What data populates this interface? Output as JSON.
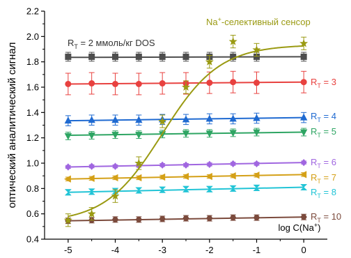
{
  "chart_data": {
    "type": "line",
    "xlabel": "log C(Na⁺)",
    "ylabel": "оптический аналитический сигнал",
    "xlim": [
      -5.5,
      0.5
    ],
    "ylim": [
      0.4,
      2.2
    ],
    "x_ticks": [
      -5,
      -4,
      -3,
      -2,
      -1,
      0
    ],
    "y_ticks": [
      0.4,
      0.6,
      0.8,
      1.0,
      1.2,
      1.4,
      1.6,
      1.8,
      2.0,
      2.2
    ],
    "y_tick_labels": [
      "0.4",
      "0.6",
      "0.8",
      "1.0",
      "1.2",
      "1.4",
      "1.6",
      "1.8",
      "2.0",
      "2.2"
    ],
    "x": [
      -5,
      -4.5,
      -4,
      -3.5,
      -3,
      -2.5,
      -2,
      -1.5,
      -1,
      0
    ],
    "series": [
      {
        "label": "R",
        "sub": "T",
        "suffix": " = 2 ммоль/кг DOS",
        "color": "#4d4d4d",
        "marker": "square",
        "err": 0.035,
        "y": [
          1.84,
          1.84,
          1.84,
          1.84,
          1.84,
          1.84,
          1.84,
          1.84,
          1.84,
          1.84
        ],
        "fit": [
          1.835,
          1.84
        ]
      },
      {
        "label": "R",
        "sub": "T",
        "suffix": " = 3",
        "color": "#e8413f",
        "marker": "circle",
        "err": 0.085,
        "y": [
          1.625,
          1.63,
          1.625,
          1.625,
          1.63,
          1.63,
          1.635,
          1.64,
          1.635,
          1.64
        ],
        "fit": [
          1.625,
          1.64
        ]
      },
      {
        "label": "R",
        "sub": "T",
        "suffix": " = 4",
        "color": "#1f6ad1",
        "marker": "triangle-up",
        "err": 0.04,
        "y": [
          1.335,
          1.34,
          1.34,
          1.34,
          1.345,
          1.345,
          1.35,
          1.35,
          1.355,
          1.36
        ],
        "fit": [
          1.335,
          1.36
        ]
      },
      {
        "label": "R",
        "sub": "T",
        "suffix": " = 5",
        "color": "#2ea563",
        "marker": "triangle-down",
        "err": 0.03,
        "y": [
          1.215,
          1.22,
          1.225,
          1.225,
          1.23,
          1.235,
          1.235,
          1.24,
          1.245,
          1.245
        ],
        "fit": [
          1.22,
          1.245
        ]
      },
      {
        "label": "R",
        "sub": "T",
        "suffix": " = 6",
        "color": "#a066e0",
        "marker": "diamond",
        "err": 0.012,
        "y": [
          0.97,
          0.975,
          0.975,
          0.98,
          0.985,
          0.985,
          0.99,
          0.995,
          0.995,
          1.005
        ],
        "fit": [
          0.97,
          1.005
        ]
      },
      {
        "label": "R",
        "sub": "T",
        "suffix": " = 7",
        "color": "#d4a017",
        "marker": "triangle-left",
        "err": 0.015,
        "y": [
          0.875,
          0.88,
          0.885,
          0.885,
          0.89,
          0.895,
          0.895,
          0.9,
          0.905,
          0.91
        ],
        "fit": [
          0.875,
          0.91
        ]
      },
      {
        "label": "R",
        "sub": "T",
        "suffix": " = 8",
        "color": "#22c4d6",
        "marker": "hourglass",
        "err": 0.022,
        "y": [
          0.77,
          0.775,
          0.78,
          0.785,
          0.79,
          0.795,
          0.795,
          0.8,
          0.805,
          0.81
        ],
        "fit": [
          0.77,
          0.81
        ]
      },
      {
        "label": "R",
        "sub": "T",
        "suffix": " = 10",
        "color": "#7b4a3c",
        "marker": "hexagon",
        "err": 0.022,
        "y": [
          0.545,
          0.55,
          0.555,
          0.555,
          0.56,
          0.565,
          0.565,
          0.57,
          0.57,
          0.575
        ],
        "fit": [
          0.545,
          0.575
        ]
      },
      {
        "label": "Na",
        "sup": "+",
        "suffix": "-селективный сенсор",
        "color": "#9a9a12",
        "marker": "star",
        "err": 0.05,
        "y": [
          0.55,
          0.6,
          0.74,
          1.0,
          1.33,
          1.6,
          1.8,
          1.96,
          1.895,
          1.945
        ],
        "sigmoid": {
          "bottom": 0.53,
          "top": 1.935,
          "x0": -3.0,
          "slope": 1.65
        }
      }
    ]
  }
}
